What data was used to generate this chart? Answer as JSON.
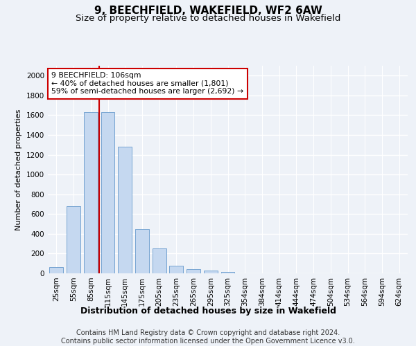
{
  "title": "9, BEECHFIELD, WAKEFIELD, WF2 6AW",
  "subtitle": "Size of property relative to detached houses in Wakefield",
  "xlabel": "Distribution of detached houses by size in Wakefield",
  "ylabel": "Number of detached properties",
  "categories": [
    "25sqm",
    "55sqm",
    "85sqm",
    "115sqm",
    "145sqm",
    "175sqm",
    "205sqm",
    "235sqm",
    "265sqm",
    "295sqm",
    "325sqm",
    "354sqm",
    "384sqm",
    "414sqm",
    "444sqm",
    "474sqm",
    "504sqm",
    "534sqm",
    "564sqm",
    "594sqm",
    "624sqm"
  ],
  "values": [
    65,
    680,
    1630,
    1630,
    1280,
    450,
    250,
    80,
    45,
    25,
    15,
    0,
    0,
    0,
    0,
    0,
    0,
    0,
    0,
    0,
    0
  ],
  "bar_color": "#c5d8f0",
  "bar_edgecolor": "#6699cc",
  "vline_x": 2.5,
  "vline_color": "#cc0000",
  "annotation_line1": "9 BEECHFIELD: 106sqm",
  "annotation_line2": "← 40% of detached houses are smaller (1,801)",
  "annotation_line3": "59% of semi-detached houses are larger (2,692) →",
  "annotation_box_color": "#ffffff",
  "annotation_box_edgecolor": "#cc0000",
  "footer_text": "Contains HM Land Registry data © Crown copyright and database right 2024.\nContains public sector information licensed under the Open Government Licence v3.0.",
  "ylim": [
    0,
    2100
  ],
  "yticks": [
    0,
    200,
    400,
    600,
    800,
    1000,
    1200,
    1400,
    1600,
    1800,
    2000
  ],
  "background_color": "#eef2f8",
  "grid_color": "#ffffff",
  "title_fontsize": 11,
  "subtitle_fontsize": 9.5,
  "xlabel_fontsize": 9,
  "ylabel_fontsize": 8,
  "tick_fontsize": 7.5,
  "footer_fontsize": 7
}
